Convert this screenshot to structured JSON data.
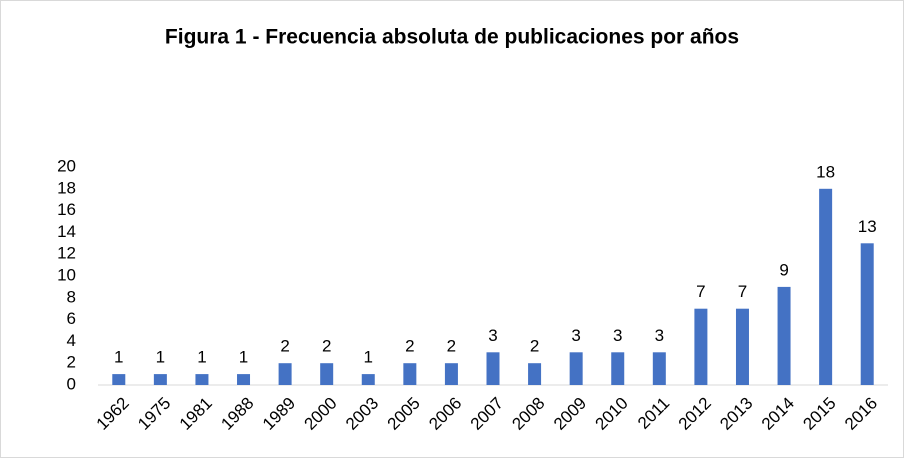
{
  "chart_data": {
    "type": "bar",
    "title": "Figura 1 - Frecuencia absoluta de publicaciones por años",
    "categories": [
      "1962",
      "1975",
      "1981",
      "1988",
      "1989",
      "2000",
      "2003",
      "2005",
      "2006",
      "2007",
      "2008",
      "2009",
      "2010",
      "2011",
      "2012",
      "2013",
      "2014",
      "2015",
      "2016"
    ],
    "values": [
      1,
      1,
      1,
      1,
      2,
      2,
      1,
      2,
      2,
      3,
      2,
      3,
      3,
      3,
      7,
      7,
      9,
      18,
      13
    ],
    "color": "#4472c4",
    "ylim": [
      0,
      20
    ],
    "yticks": [
      0,
      2,
      4,
      6,
      8,
      10,
      12,
      14,
      16,
      18,
      20
    ],
    "grid": false
  }
}
